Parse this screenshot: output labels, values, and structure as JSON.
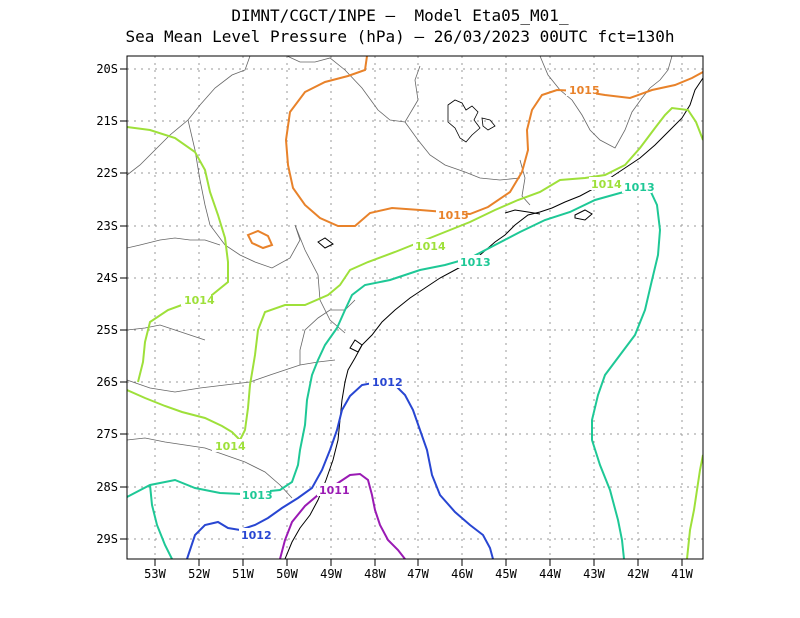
{
  "title": {
    "line1": "DIMNT/CGCT/INPE –  Model Eta05_M01_",
    "line2": "Sea Mean Level Pressure (hPa) – 26/03/2023 00UTC fct=130h"
  },
  "axes": {
    "lat_labels": [
      "20S",
      "21S",
      "22S",
      "23S",
      "24S",
      "25S",
      "26S",
      "27S",
      "28S",
      "29S"
    ],
    "lon_labels": [
      "53W",
      "52W",
      "51W",
      "50W",
      "49W",
      "48W",
      "47W",
      "46W",
      "45W",
      "44W",
      "43W",
      "42W",
      "41W"
    ]
  },
  "colors": {
    "c1015": "#e8822a",
    "c1014": "#9ee03a",
    "c1013": "#1ec896",
    "c1012": "#2846d2",
    "c1011": "#9a1ab4",
    "grid": "#9a9a9a",
    "coast": "#000000",
    "border": "#666666"
  },
  "contours": [
    {
      "value": 1015,
      "labels": [
        "1015",
        "1015"
      ]
    },
    {
      "value": 1014,
      "labels": [
        "1014",
        "1014",
        "1014",
        "1014"
      ]
    },
    {
      "value": 1013,
      "labels": [
        "1013",
        "1013",
        "1013"
      ]
    },
    {
      "value": 1012,
      "labels": [
        "1012",
        "1012"
      ]
    },
    {
      "value": 1011,
      "labels": [
        "1011"
      ]
    }
  ]
}
